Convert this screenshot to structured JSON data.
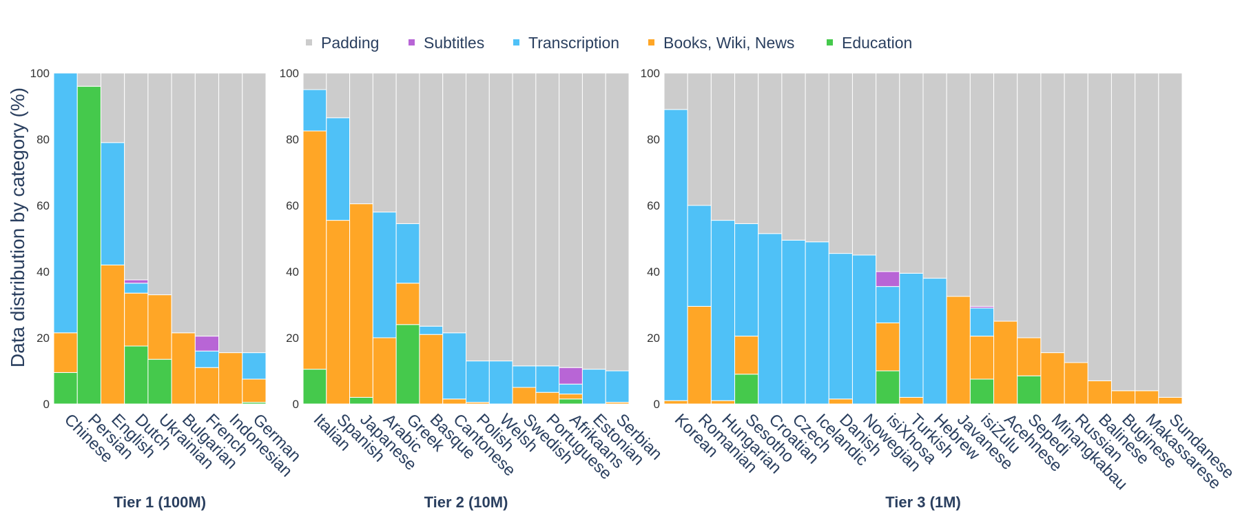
{
  "chart_data": {
    "type": "bar",
    "stacked": true,
    "ylabel": "Data distribution by category (%)",
    "ylim": [
      0,
      100
    ],
    "yticks": [
      0,
      20,
      40,
      60,
      80,
      100
    ],
    "legend": {
      "placement": "top-center",
      "items": [
        {
          "key": "padding",
          "label": "Padding"
        },
        {
          "key": "subtitles",
          "label": "Subtitles"
        },
        {
          "key": "transcription",
          "label": "Transcription"
        },
        {
          "key": "books",
          "label": "Books, Wiki, News"
        },
        {
          "key": "education",
          "label": "Education"
        }
      ]
    },
    "colors": {
      "padding": "#cccccc",
      "subtitles": "#b865d6",
      "transcription": "#4fc1f7",
      "books": "#ffa626",
      "education": "#45c94c"
    },
    "stack_order": [
      "education",
      "books",
      "transcription",
      "subtitles",
      "padding"
    ],
    "panels": [
      {
        "title": "Tier 1 (100M)",
        "categories": [
          "Chinese",
          "Persian",
          "English",
          "Dutch",
          "Ukrainian",
          "Bulgarian",
          "French",
          "Indonesian",
          "German"
        ],
        "series": {
          "education": [
            9.5,
            96,
            0,
            17.5,
            13.5,
            0,
            0,
            0,
            0.5
          ],
          "books": [
            12,
            0,
            42,
            16,
            19.5,
            21.5,
            11,
            15.5,
            7
          ],
          "transcription": [
            78.5,
            0,
            37,
            3,
            0,
            0,
            5,
            0,
            8
          ],
          "subtitles": [
            0,
            0,
            0,
            1,
            0,
            0,
            4.5,
            0,
            0
          ],
          "padding": [
            0,
            4,
            21,
            62.5,
            67,
            78.5,
            79.5,
            84.5,
            84.5
          ]
        }
      },
      {
        "title": "Tier 2 (10M)",
        "categories": [
          "Italian",
          "Spanish",
          "Japanese",
          "Arabic",
          "Greek",
          "Basque",
          "Cantonese",
          "Polish",
          "Welsh",
          "Swedish",
          "Portuguese",
          "Afrikaans",
          "Estonian",
          "Serbian"
        ],
        "series": {
          "education": [
            10.5,
            0,
            2,
            0,
            24,
            0,
            0,
            0,
            0,
            0,
            0,
            1.5,
            0,
            0
          ],
          "books": [
            72,
            55.5,
            58.5,
            20,
            12.5,
            21,
            1.5,
            0.5,
            0,
            5,
            3.5,
            1.5,
            0,
            0.5
          ],
          "transcription": [
            12.5,
            31,
            0,
            38,
            18,
            2.5,
            20,
            12.5,
            13,
            6.5,
            8,
            3,
            10.5,
            9.5
          ],
          "subtitles": [
            0,
            0,
            0,
            0,
            0,
            0,
            0,
            0,
            0,
            0,
            0,
            5,
            0,
            0
          ],
          "padding": [
            5,
            13.5,
            39.5,
            42,
            45.5,
            76.5,
            78.5,
            87,
            87,
            88.5,
            88.5,
            89,
            89.5,
            90
          ]
        }
      },
      {
        "title": "Tier 3 (1M)",
        "categories": [
          "Korean",
          "Romanian",
          "Hungarian",
          "Sesotho",
          "Croatian",
          "Czech",
          "Icelandic",
          "Danish",
          "Nowegian",
          "isiXhosa",
          "Turkish",
          "Hebrew",
          "Javanese",
          "isiZulu",
          "Acehnese",
          "Sepedi",
          "Minangkabau",
          "Russian",
          "Balinese",
          "Buginese",
          "Makassarese",
          "Sundanese"
        ],
        "series": {
          "education": [
            0,
            0,
            0,
            9,
            0,
            0,
            0,
            0,
            0,
            10,
            0,
            0,
            0,
            7.5,
            0,
            8.5,
            0,
            0,
            0,
            0,
            0,
            0
          ],
          "books": [
            1,
            29.5,
            1,
            11.5,
            0,
            0,
            0,
            1.5,
            0,
            14.5,
            2,
            0,
            32.5,
            13,
            25,
            11.5,
            15.5,
            12.5,
            7,
            4,
            4,
            2
          ],
          "transcription": [
            88,
            30.5,
            54.5,
            34,
            51.5,
            49.5,
            49,
            44,
            45,
            11,
            37.5,
            38,
            0,
            8.5,
            0,
            0,
            0,
            0,
            0,
            0,
            0,
            0
          ],
          "subtitles": [
            0,
            0,
            0,
            0,
            0,
            0,
            0,
            0,
            0,
            4.5,
            0,
            0,
            0,
            0.5,
            0,
            0,
            0,
            0,
            0,
            0,
            0,
            0
          ],
          "padding": [
            11,
            40,
            44.5,
            45.5,
            48.5,
            50.5,
            51,
            54.5,
            55,
            60,
            60.5,
            62,
            67.5,
            70.5,
            75,
            80,
            84.5,
            87.5,
            93,
            96,
            96,
            98
          ]
        }
      }
    ]
  }
}
